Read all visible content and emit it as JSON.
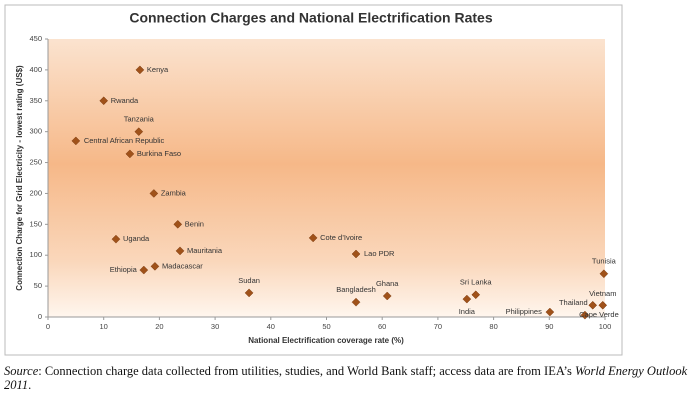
{
  "chart_data": {
    "type": "scatter",
    "title": "Connection Charges and National Electrification Rates",
    "xlabel": "National Electrification coverage rate (%)",
    "ylabel": "Connection Charge for Grid Electricity - lowest rating (US$)",
    "labels": [
      "Kenya",
      "Rwanda",
      "Tanzania",
      "Central African Republic",
      "Burkina Faso",
      "Zambia",
      "Benin",
      "Uganda",
      "Mauritania",
      "Cote d’Ivoire",
      "Lao PDR",
      "Ethiopia",
      "Madacascar",
      "Sudan",
      "Bangladesh",
      "Ghana",
      "Sri Lanka",
      "India",
      "Philippines",
      "Thailand",
      "Vietnam",
      "Tunisia",
      "Cape Verde"
    ],
    "x": [
      16.5,
      10,
      16.3,
      5,
      14.7,
      19,
      23.3,
      12.2,
      23.7,
      47.6,
      55.3,
      17.2,
      19.2,
      36.1,
      55.3,
      60.9,
      76.8,
      75.2,
      90.1,
      97.8,
      99.6,
      99.8,
      96.4
    ],
    "values": [
      400,
      350,
      300,
      285,
      264,
      200,
      150,
      126,
      107,
      128,
      102,
      76,
      82,
      39,
      24,
      34,
      36,
      29,
      8,
      19,
      19,
      70,
      3
    ],
    "color": "#a0521a",
    "xlim": [
      0,
      100
    ],
    "xticks": [
      0,
      10,
      20,
      30,
      40,
      50,
      60,
      70,
      80,
      90,
      100
    ],
    "ylim": [
      0,
      450
    ],
    "yticks": [
      0,
      50,
      100,
      150,
      200,
      250,
      300,
      350,
      400,
      450
    ]
  },
  "source": {
    "label": "Source",
    "text": ": Connection charge data collected from utilities, studies, and World Bank staff; access data are from IEA’s ",
    "work": "World Energy Outlook 2011",
    "end": "."
  }
}
